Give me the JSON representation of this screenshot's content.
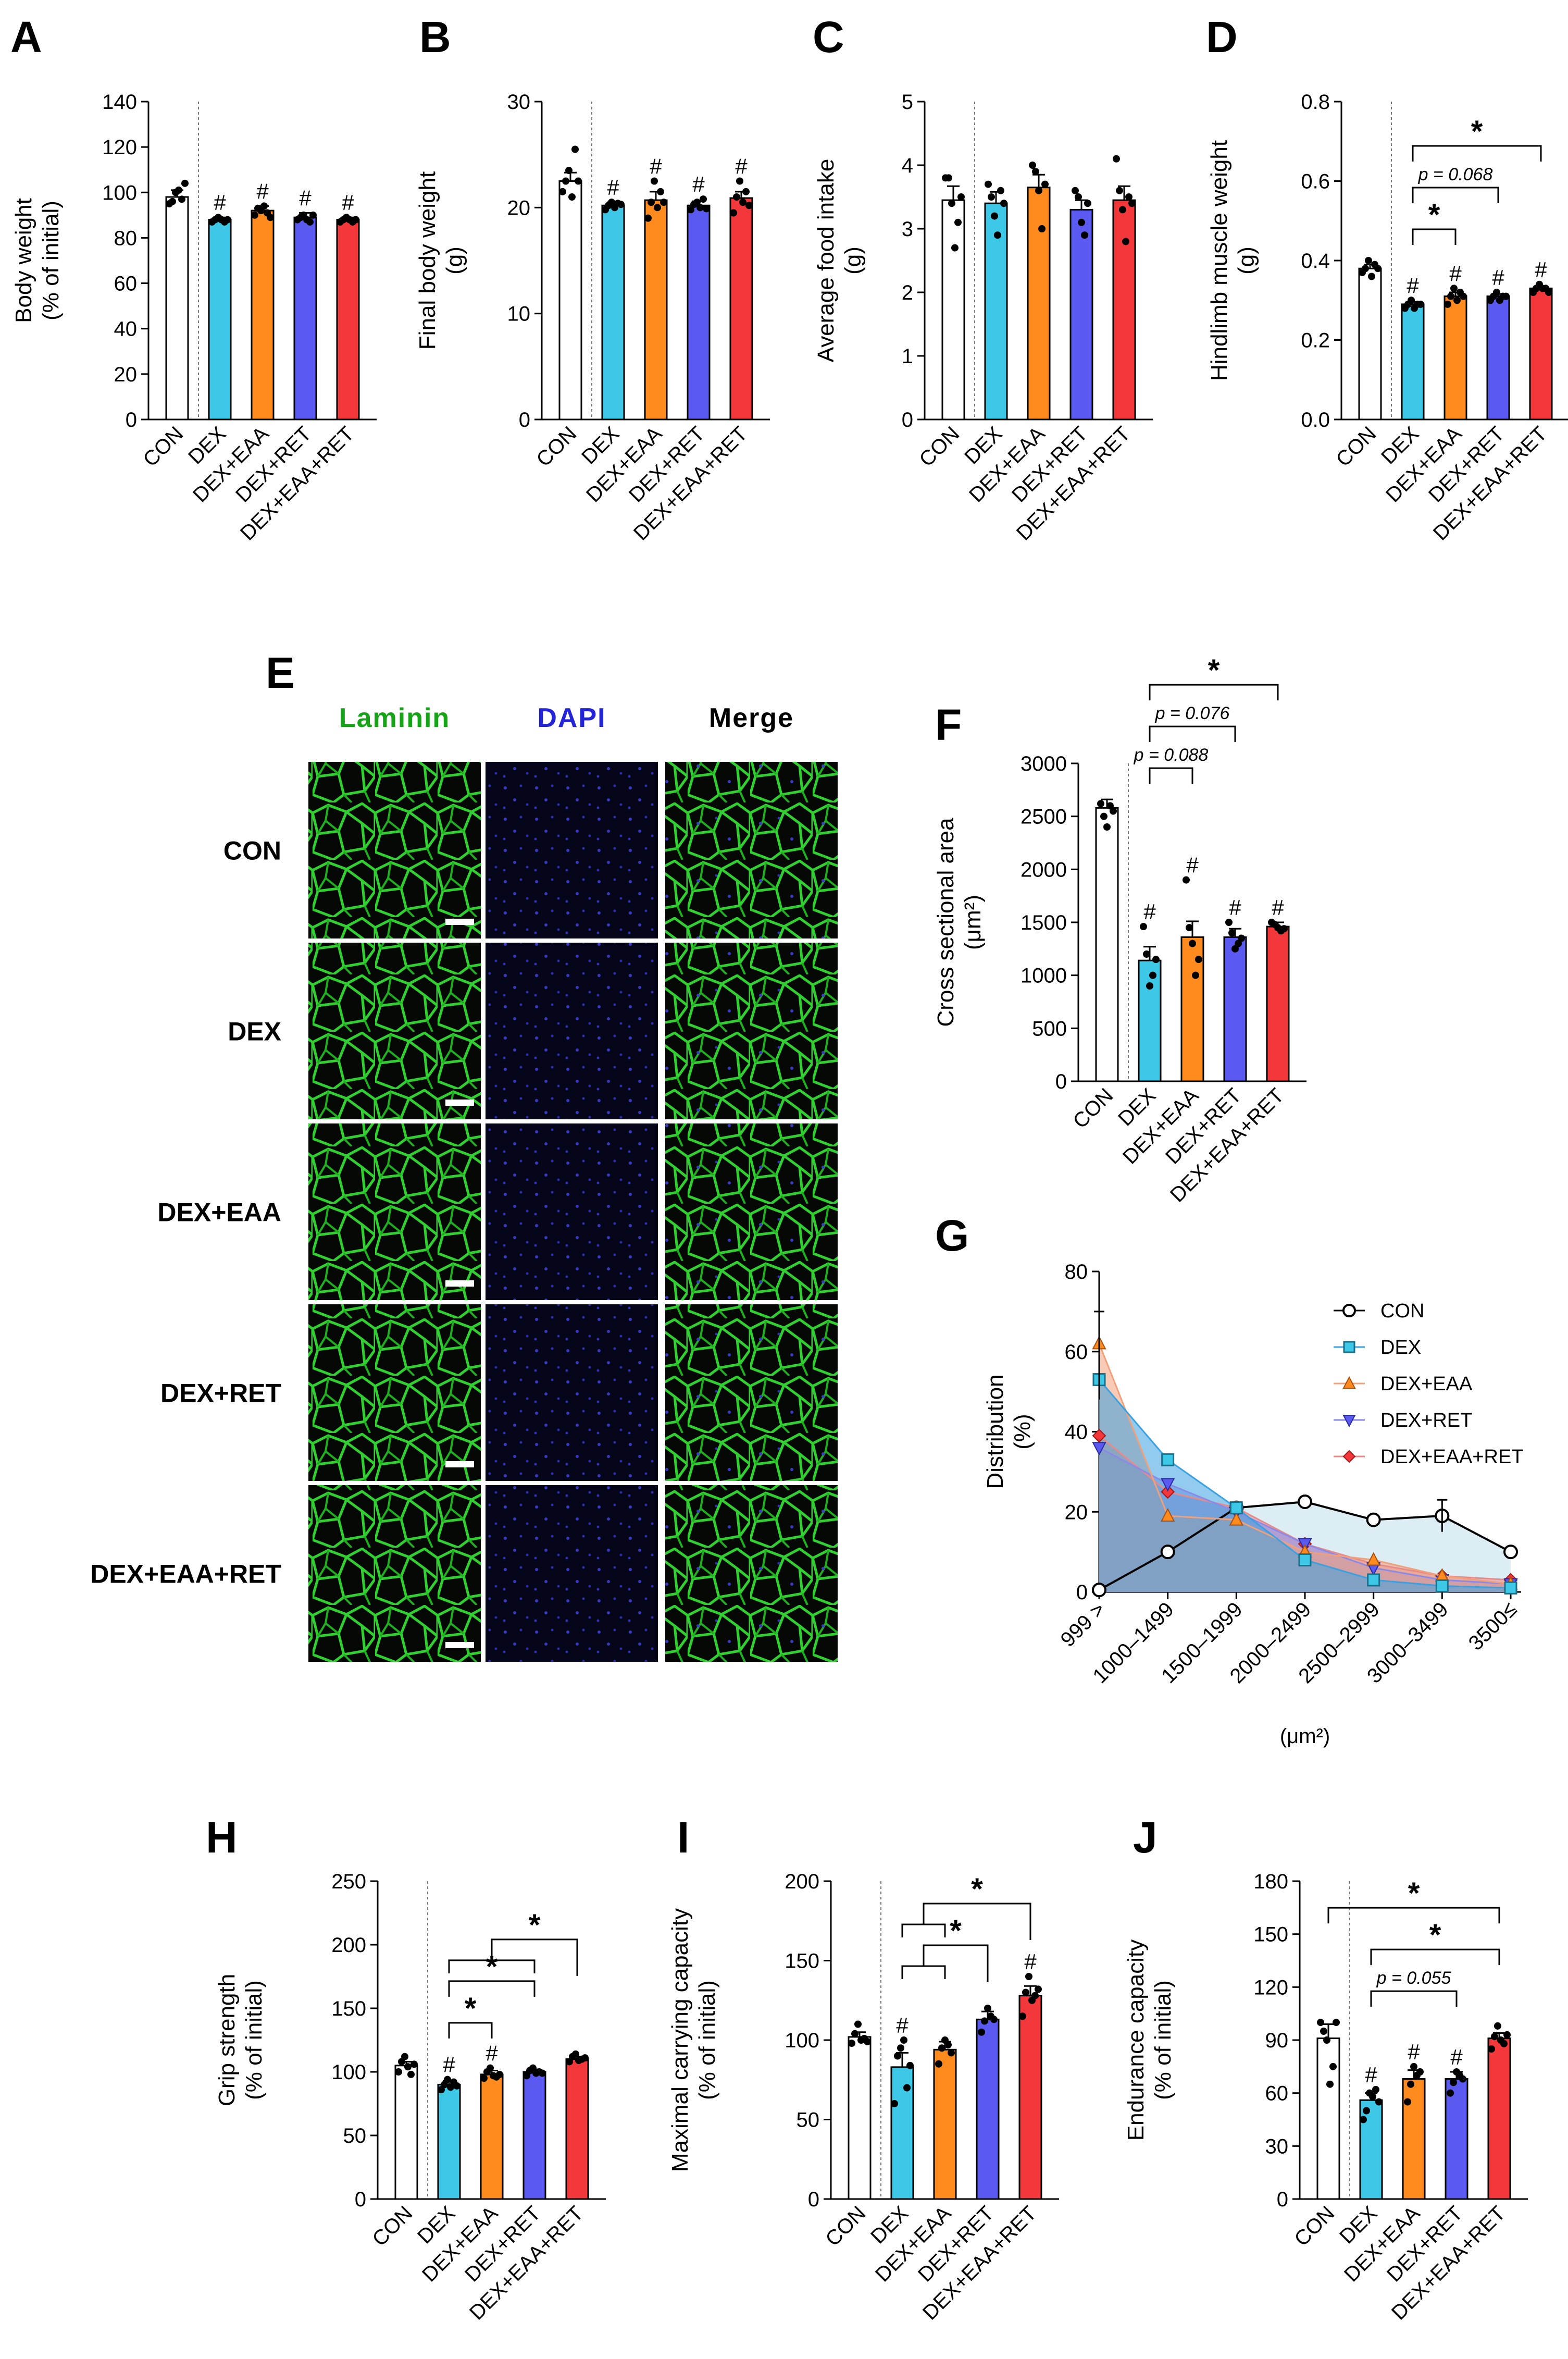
{
  "colors": {
    "CON": "#ffffff",
    "DEX": "#3cc8e6",
    "DEX+EAA": "#ff8a1e",
    "DEX+RET": "#5a5af0",
    "DEX+EAA+RET": "#f2383a",
    "laminin_text": "#17a317",
    "dapi_text": "#2323d8",
    "merge_text": "#000000"
  },
  "groups": [
    "CON",
    "DEX",
    "DEX+EAA",
    "DEX+RET",
    "DEX+EAA+RET"
  ],
  "chart_data": [
    {
      "id": "A",
      "type": "bar",
      "panel_letter": "A",
      "title": "",
      "ylabel": "Body weight (% of initial)",
      "ylim": [
        0,
        140
      ],
      "yticks": [
        0,
        20,
        40,
        60,
        80,
        100,
        120,
        140
      ],
      "categories": [
        "CON",
        "DEX",
        "DEX+EAA",
        "DEX+RET",
        "DEX+EAA+RET"
      ],
      "values": [
        98,
        88,
        92,
        89,
        88
      ],
      "errors": [
        3,
        1,
        2,
        2,
        1
      ],
      "points": [
        [
          95,
          96,
          100,
          101,
          97,
          104
        ],
        [
          87,
          88,
          89,
          88,
          87,
          88
        ],
        [
          90,
          93,
          92,
          94,
          91,
          89
        ],
        [
          88,
          89,
          90,
          88,
          87,
          90
        ],
        [
          87,
          88,
          89,
          88,
          87,
          88
        ]
      ],
      "hash": [
        false,
        true,
        true,
        true,
        true
      ],
      "comparisons": []
    },
    {
      "id": "B",
      "type": "bar",
      "panel_letter": "B",
      "title": "",
      "ylabel": "Final body weight (g)",
      "ylim": [
        0,
        30
      ],
      "yticks": [
        0,
        10,
        20,
        30
      ],
      "categories": [
        "CON",
        "DEX",
        "DEX+EAA",
        "DEX+RET",
        "DEX+EAA+RET"
      ],
      "values": [
        22.5,
        20.2,
        20.7,
        20.2,
        20.9
      ],
      "errors": [
        0.8,
        0.3,
        0.8,
        0.4,
        0.6
      ],
      "points": [
        [
          21.5,
          22.5,
          23.5,
          21.0,
          25.5,
          22.5
        ],
        [
          19.8,
          20.2,
          20.5,
          20.0,
          20.4,
          20.3
        ],
        [
          19.0,
          20.5,
          22.5,
          20.0,
          21.5,
          20.5
        ],
        [
          19.8,
          20.3,
          20.5,
          20.0,
          20.8,
          19.9
        ],
        [
          19.5,
          21.0,
          22.5,
          20.5,
          21.5,
          20.2
        ]
      ],
      "hash": [
        false,
        true,
        true,
        true,
        true
      ],
      "comparisons": []
    },
    {
      "id": "C",
      "type": "bar",
      "panel_letter": "C",
      "title": "",
      "ylabel": "Average food intake (g)",
      "ylim": [
        0,
        5
      ],
      "yticks": [
        0,
        1,
        2,
        3,
        4,
        5
      ],
      "categories": [
        "CON",
        "DEX",
        "DEX+EAA",
        "DEX+RET",
        "DEX+EAA+RET"
      ],
      "values": [
        3.45,
        3.4,
        3.65,
        3.3,
        3.45
      ],
      "errors": [
        0.22,
        0.18,
        0.2,
        0.15,
        0.22
      ],
      "points": [
        [
          3.8,
          3.8,
          3.4,
          2.7,
          3.1,
          3.5
        ],
        [
          3.7,
          3.5,
          3.2,
          2.9,
          3.6,
          3.4
        ],
        [
          4.0,
          3.9,
          3.6,
          3.0,
          3.7
        ],
        [
          3.6,
          3.5,
          3.1,
          2.9,
          3.4
        ],
        [
          4.1,
          3.6,
          3.3,
          2.8,
          3.5,
          3.4
        ]
      ],
      "hash": [
        false,
        false,
        false,
        false,
        false
      ],
      "comparisons": []
    },
    {
      "id": "D",
      "type": "bar",
      "panel_letter": "D",
      "title": "",
      "ylabel": "Hindlimb muscle weight (g)",
      "ylim": [
        0,
        0.8
      ],
      "yticks": [
        0.0,
        0.2,
        0.4,
        0.6,
        0.8
      ],
      "categories": [
        "CON",
        "DEX",
        "DEX+EAA",
        "DEX+RET",
        "DEX+EAA+RET"
      ],
      "values": [
        0.38,
        0.29,
        0.31,
        0.31,
        0.33
      ],
      "errors": [
        0.01,
        0.006,
        0.01,
        0.006,
        0.006
      ],
      "points": [
        [
          0.37,
          0.38,
          0.4,
          0.36,
          0.39,
          0.38
        ],
        [
          0.28,
          0.29,
          0.3,
          0.28,
          0.29,
          0.29
        ],
        [
          0.29,
          0.31,
          0.33,
          0.3,
          0.32,
          0.31
        ],
        [
          0.3,
          0.31,
          0.32,
          0.3,
          0.31,
          0.31
        ],
        [
          0.32,
          0.33,
          0.34,
          0.33,
          0.33,
          0.32
        ]
      ],
      "hash": [
        false,
        true,
        true,
        true,
        true
      ],
      "comparisons": [
        {
          "type": "pair",
          "a": 1,
          "b": 2,
          "label": "*",
          "italic": false,
          "tier": 0
        },
        {
          "type": "pair",
          "a": 1,
          "b": 3,
          "label": "p = 0.068",
          "italic": true,
          "tier": 1
        },
        {
          "type": "pair",
          "a": 1,
          "b": 4,
          "label": "*",
          "italic": false,
          "tier": 2
        }
      ]
    },
    {
      "id": "F",
      "type": "bar",
      "panel_letter": "F",
      "title": "",
      "ylabel": "Cross sectional area (μm²)",
      "ylim": [
        0,
        3000
      ],
      "yticks": [
        0,
        500,
        1000,
        1500,
        2000,
        2500,
        3000
      ],
      "categories": [
        "CON",
        "DEX",
        "DEX+EAA",
        "DEX+RET",
        "DEX+EAA+RET"
      ],
      "values": [
        2580,
        1140,
        1360,
        1360,
        1460
      ],
      "errors": [
        80,
        130,
        150,
        80,
        40
      ],
      "points": [
        [
          2620,
          2500,
          2400,
          2600,
          2550
        ],
        [
          1460,
          1200,
          900,
          1000,
          1150
        ],
        [
          1900,
          1450,
          1300,
          1000,
          1150
        ],
        [
          1500,
          1400,
          1250,
          1300,
          1350
        ],
        [
          1500,
          1480,
          1450,
          1420,
          1440
        ]
      ],
      "hash": [
        false,
        true,
        true,
        true,
        true
      ],
      "comparisons": [
        {
          "type": "pair",
          "a": 1,
          "b": 2,
          "label": "p = 0.088",
          "italic": true,
          "tier": 0
        },
        {
          "type": "pair",
          "a": 1,
          "b": 3,
          "label": "p = 0.076",
          "italic": true,
          "tier": 1
        },
        {
          "type": "pair",
          "a": 1,
          "b": 4,
          "label": "*",
          "italic": false,
          "tier": 2
        }
      ]
    },
    {
      "id": "G",
      "type": "area",
      "panel_letter": "G",
      "title": "",
      "ylabel": "Distribution (%)",
      "xlabel": "(μm²)",
      "ylim": [
        0,
        80
      ],
      "yticks": [
        0,
        20,
        40,
        60,
        80
      ],
      "categories": [
        "999 >",
        "1000–1499",
        "1500–1999",
        "2000–2499",
        "2500–2999",
        "3000–3499",
        "3500≤"
      ],
      "series": [
        {
          "name": "CON",
          "values": [
            0.5,
            10,
            21,
            22.5,
            18,
            19,
            10
          ]
        },
        {
          "name": "DEX",
          "values": [
            53,
            33,
            21,
            8,
            3,
            1.5,
            1
          ]
        },
        {
          "name": "DEX+EAA",
          "values": [
            62,
            19,
            18,
            10,
            8,
            4,
            2
          ]
        },
        {
          "name": "DEX+RET",
          "values": [
            36,
            27,
            20,
            12,
            6,
            3,
            2
          ]
        },
        {
          "name": "DEX+EAA+RET",
          "values": [
            39,
            25,
            21,
            12,
            7,
            4,
            3
          ]
        }
      ],
      "legend": "top-right"
    },
    {
      "id": "H",
      "type": "bar",
      "panel_letter": "H",
      "title": "",
      "ylabel": "Grip strength (% of initial)",
      "ylim": [
        0,
        250
      ],
      "yticks": [
        0,
        50,
        100,
        150,
        200,
        250
      ],
      "categories": [
        "CON",
        "DEX",
        "DEX+EAA",
        "DEX+RET",
        "DEX+EAA+RET"
      ],
      "values": [
        105,
        90,
        98,
        100,
        110
      ],
      "errors": [
        3,
        3,
        3,
        2,
        2
      ],
      "points": [
        [
          100,
          108,
          112,
          104,
          98,
          106
        ],
        [
          86,
          90,
          94,
          88,
          92,
          89
        ],
        [
          95,
          100,
          103,
          97,
          96,
          98
        ],
        [
          97,
          101,
          103,
          99,
          100,
          99
        ],
        [
          108,
          112,
          114,
          109,
          110,
          111
        ]
      ],
      "hash": [
        false,
        true,
        true,
        false,
        false
      ],
      "comparisons": [
        {
          "type": "pair",
          "a": 1,
          "b": 2,
          "label": "*",
          "italic": false,
          "tier": 0
        },
        {
          "type": "pair",
          "a": 1,
          "b": 3,
          "label": "*",
          "italic": false,
          "tier": 1
        },
        {
          "type": "group",
          "a": 1,
          "b": 3,
          "c": 4,
          "label": "*",
          "italic": false,
          "tier": 2
        }
      ]
    },
    {
      "id": "I",
      "type": "bar",
      "panel_letter": "I",
      "title": "",
      "ylabel": "Maximal carrying capacity (% of initial)",
      "ylim": [
        0,
        200
      ],
      "yticks": [
        0,
        50,
        100,
        150,
        200
      ],
      "categories": [
        "CON",
        "DEX",
        "DEX+EAA",
        "DEX+RET",
        "DEX+EAA+RET"
      ],
      "values": [
        102,
        83,
        94,
        113,
        128
      ],
      "errors": [
        3,
        9,
        5,
        5,
        6
      ],
      "points": [
        [
          98,
          104,
          110,
          100,
          101,
          99
        ],
        [
          60,
          90,
          95,
          100,
          70,
          84
        ],
        [
          85,
          95,
          100,
          97,
          92
        ],
        [
          105,
          112,
          120,
          115,
          113
        ],
        [
          115,
          130,
          140,
          125,
          128,
          132
        ]
      ],
      "hash": [
        false,
        true,
        false,
        false,
        true
      ],
      "comparisons": [
        {
          "type": "group",
          "a": 1,
          "b": 2,
          "c": 3,
          "label": "*",
          "italic": false,
          "tier": 0
        },
        {
          "type": "group",
          "a": 1,
          "b": 2,
          "c": 4,
          "label": "*",
          "italic": false,
          "tier": 1
        }
      ]
    },
    {
      "id": "J",
      "type": "bar",
      "panel_letter": "J",
      "title": "",
      "ylabel": "Endurance capacity (% of initial)",
      "ylim": [
        0,
        180
      ],
      "yticks": [
        0,
        30,
        60,
        90,
        120,
        150,
        180
      ],
      "categories": [
        "CON",
        "DEX",
        "DEX+EAA",
        "DEX+RET",
        "DEX+EAA+RET"
      ],
      "values": [
        91,
        56,
        68,
        68,
        91
      ],
      "errors": [
        8,
        4,
        5,
        4,
        3
      ],
      "points": [
        [
          100,
          95,
          90,
          65,
          75,
          100
        ],
        [
          45,
          50,
          60,
          58,
          62,
          55
        ],
        [
          55,
          65,
          75,
          70,
          72
        ],
        [
          60,
          66,
          72,
          70,
          68
        ],
        [
          85,
          92,
          98,
          90,
          88,
          93
        ]
      ],
      "hash": [
        false,
        true,
        true,
        true,
        false
      ],
      "comparisons": [
        {
          "type": "pair",
          "a": 1,
          "b": 3,
          "label": "p = 0.055",
          "italic": true,
          "tier": 0
        },
        {
          "type": "pair",
          "a": 1,
          "b": 4,
          "label": "*",
          "italic": false,
          "tier": 1
        },
        {
          "type": "pair",
          "a": 0,
          "b": 4,
          "label": "*",
          "italic": false,
          "tier": 2
        }
      ]
    }
  ],
  "panel_E": {
    "panel_letter": "E",
    "columns": [
      "Laminin",
      "DAPI",
      "Merge"
    ],
    "rows": [
      "CON",
      "DEX",
      "DEX+EAA",
      "DEX+RET",
      "DEX+EAA+RET"
    ]
  }
}
